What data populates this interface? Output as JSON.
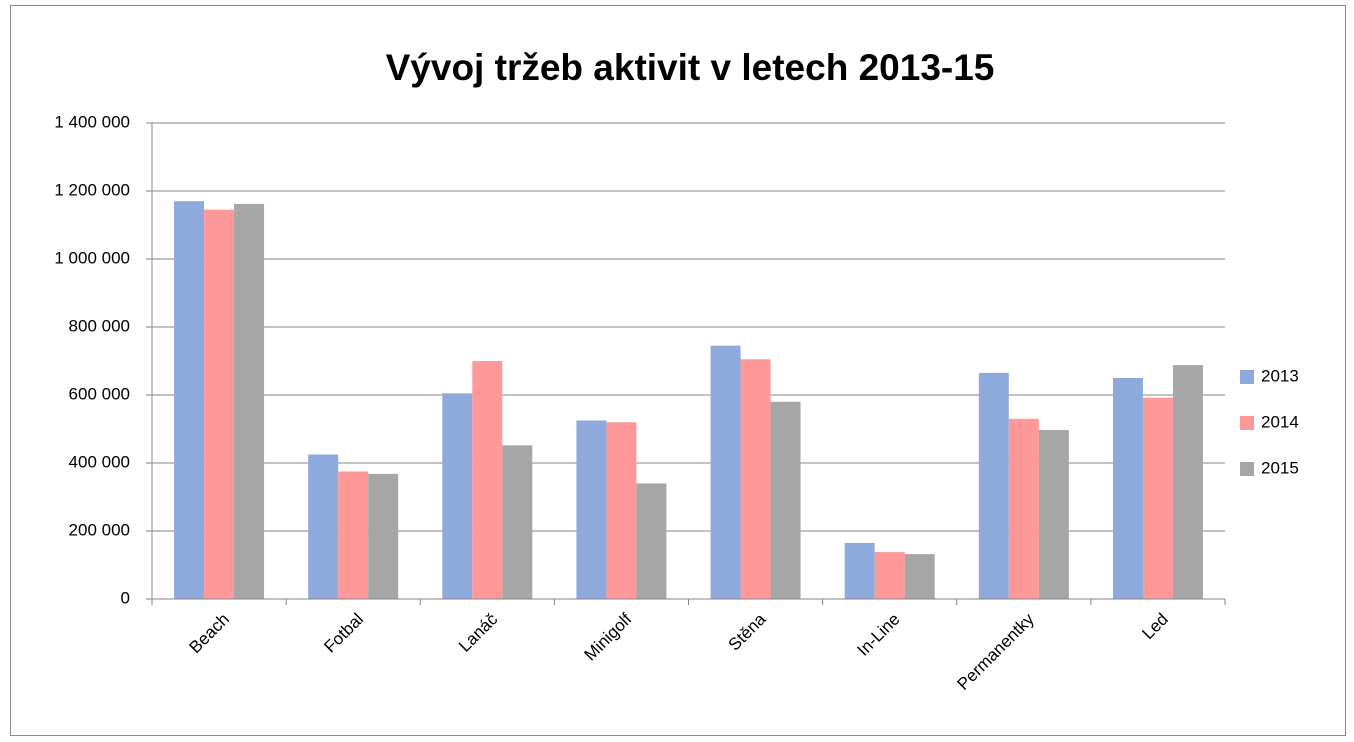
{
  "chart_data": {
    "type": "bar",
    "title": "Vývoj tržeb aktivit v letech 2013-15",
    "categories": [
      "Beach",
      "Fotbal",
      "Lanáč",
      "Minigolf",
      "Stěna",
      "In-Line",
      "Permanentky",
      "Led"
    ],
    "series": [
      {
        "name": "2013",
        "color": "#8eaadc",
        "values": [
          1170000,
          425000,
          605000,
          525000,
          745000,
          165000,
          665000,
          650000
        ]
      },
      {
        "name": "2014",
        "color": "#ff9999",
        "values": [
          1145000,
          375000,
          700000,
          520000,
          705000,
          138000,
          530000,
          592000
        ]
      },
      {
        "name": "2015",
        "color": "#a6a6a6",
        "values": [
          1162000,
          368000,
          452000,
          340000,
          580000,
          132000,
          497000,
          688000
        ]
      }
    ],
    "ylim": [
      0,
      1400000
    ],
    "yticks": [
      0,
      {
        "value": 200000,
        "label": "200 000"
      },
      {
        "value": 400000,
        "label": "400 000"
      },
      {
        "value": 600000,
        "label": "600 000"
      },
      {
        "value": 800000,
        "label": "800 000"
      },
      {
        "value": 1000000,
        "label": "1 000 000"
      },
      {
        "value": 1200000,
        "label": "1 200 000"
      },
      {
        "value": 1400000,
        "label": "1 400 000"
      }
    ],
    "grid": true,
    "legend": "right"
  }
}
